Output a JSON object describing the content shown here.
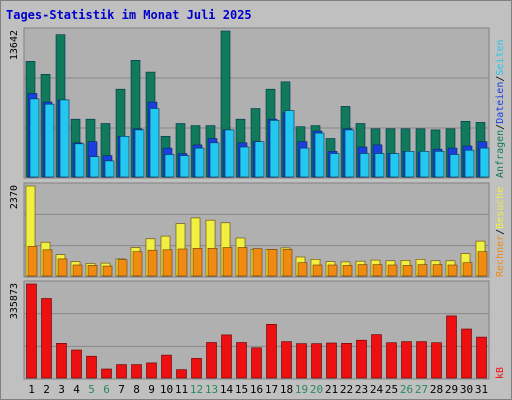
{
  "title": "Tages-Statistik im Monat Juli 2025",
  "colors": {
    "bg": "#c0c0c0",
    "plot": "#b0b0b0",
    "grid": "#888888",
    "anfragen": "#107a5a",
    "dateien": "#1a3ee0",
    "seiten": "#22c8f0",
    "besuche": "#f0f040",
    "rechner": "#f08a10",
    "kb": "#ee1010",
    "weekday": "#000000",
    "weekend": "#2a8a5a",
    "title": "#0000cc"
  },
  "chart_data": [
    {
      "type": "bar",
      "title": "Tages-Statistik im Monat Juli 2025",
      "ymax_label": "13642",
      "ylim": [
        0,
        13642
      ],
      "right_labels": [
        {
          "text": "Anfragen",
          "color": "#107a5a"
        },
        {
          "text": "/",
          "color": "#000000"
        },
        {
          "text": "Dateien",
          "color": "#1a3ee0"
        },
        {
          "text": "/",
          "color": "#000000"
        },
        {
          "text": "Seiten",
          "color": "#22c8f0"
        }
      ],
      "categories": [
        "1",
        "2",
        "3",
        "4",
        "5",
        "6",
        "7",
        "8",
        "9",
        "10",
        "11",
        "12",
        "13",
        "14",
        "15",
        "16",
        "17",
        "18",
        "19",
        "20",
        "21",
        "22",
        "23",
        "24",
        "25",
        "26",
        "27",
        "28",
        "29",
        "30",
        "31"
      ],
      "series": [
        {
          "name": "Anfragen",
          "values": [
            10800,
            9600,
            13300,
            5400,
            5400,
            5000,
            8200,
            10900,
            9800,
            3800,
            5000,
            4800,
            4800,
            13642,
            5400,
            6400,
            8200,
            8900,
            4700,
            4800,
            3600,
            6600,
            5000,
            4500,
            4500,
            4500,
            4500,
            4400,
            4500,
            5200,
            5100
          ]
        },
        {
          "name": "Dateien",
          "values": [
            7800,
            7000,
            7200,
            3200,
            3300,
            2000,
            3800,
            4500,
            7000,
            2700,
            2200,
            3000,
            3600,
            4400,
            3200,
            3300,
            5400,
            6000,
            3300,
            4300,
            2400,
            4500,
            2800,
            3000,
            2200,
            2400,
            2300,
            2600,
            2700,
            2900,
            3300
          ]
        },
        {
          "name": "Seiten",
          "values": [
            7300,
            6800,
            7200,
            3100,
            1900,
            1500,
            3800,
            4400,
            6400,
            2100,
            2000,
            2700,
            3200,
            4400,
            2800,
            3300,
            5300,
            6200,
            2700,
            4100,
            2200,
            4400,
            2200,
            2200,
            2200,
            2400,
            2400,
            2400,
            2100,
            2500,
            2700
          ]
        }
      ]
    },
    {
      "type": "bar",
      "ymax_label": "2370",
      "ylim": [
        0,
        2370
      ],
      "right_labels": [
        {
          "text": "Rechner",
          "color": "#f08a10"
        },
        {
          "text": "/",
          "color": "#000000"
        },
        {
          "text": "Besuche",
          "color": "#f0f040"
        }
      ],
      "categories": [
        "1",
        "2",
        "3",
        "4",
        "5",
        "6",
        "7",
        "8",
        "9",
        "10",
        "11",
        "12",
        "13",
        "14",
        "15",
        "16",
        "17",
        "18",
        "19",
        "20",
        "21",
        "22",
        "23",
        "24",
        "25",
        "26",
        "27",
        "28",
        "29",
        "30",
        "31"
      ],
      "series": [
        {
          "name": "Besuche",
          "values": [
            2370,
            890,
            560,
            380,
            330,
            340,
            450,
            750,
            980,
            1050,
            1380,
            1530,
            1470,
            1400,
            1000,
            700,
            700,
            740,
            500,
            440,
            380,
            370,
            390,
            420,
            400,
            410,
            440,
            400,
            400,
            590,
            920
          ]
        },
        {
          "name": "Rechner",
          "values": [
            780,
            690,
            450,
            290,
            280,
            260,
            430,
            640,
            680,
            690,
            710,
            730,
            730,
            750,
            750,
            720,
            700,
            700,
            350,
            290,
            290,
            280,
            300,
            300,
            290,
            280,
            300,
            300,
            290,
            350,
            640
          ]
        }
      ]
    },
    {
      "type": "bar",
      "ymax_label": "335873",
      "ylim": [
        0,
        335873
      ],
      "right_labels": [
        {
          "text": "kB",
          "color": "#ee1010"
        }
      ],
      "categories": [
        "1",
        "2",
        "3",
        "4",
        "5",
        "6",
        "7",
        "8",
        "9",
        "10",
        "11",
        "12",
        "13",
        "14",
        "15",
        "16",
        "17",
        "18",
        "19",
        "20",
        "21",
        "22",
        "23",
        "24",
        "25",
        "26",
        "27",
        "28",
        "29",
        "30",
        "31"
      ],
      "series": [
        {
          "name": "kB",
          "values": [
            335873,
            284000,
            124000,
            100000,
            78000,
            32000,
            48000,
            48000,
            54000,
            82000,
            30000,
            70000,
            127000,
            154000,
            127000,
            108000,
            192000,
            130000,
            123000,
            123000,
            125000,
            124000,
            135000,
            155000,
            126000,
            130000,
            130000,
            126000,
            222000,
            175000,
            146000
          ]
        }
      ]
    }
  ],
  "x_labels": [
    {
      "text": "1",
      "weekend": false
    },
    {
      "text": "2",
      "weekend": false
    },
    {
      "text": "3",
      "weekend": false
    },
    {
      "text": "4",
      "weekend": false
    },
    {
      "text": "5",
      "weekend": true
    },
    {
      "text": "6",
      "weekend": true
    },
    {
      "text": "7",
      "weekend": false
    },
    {
      "text": "8",
      "weekend": false
    },
    {
      "text": "9",
      "weekend": false
    },
    {
      "text": "10",
      "weekend": false
    },
    {
      "text": "11",
      "weekend": false
    },
    {
      "text": "12",
      "weekend": true
    },
    {
      "text": "13",
      "weekend": true
    },
    {
      "text": "14",
      "weekend": false
    },
    {
      "text": "15",
      "weekend": false
    },
    {
      "text": "16",
      "weekend": false
    },
    {
      "text": "17",
      "weekend": false
    },
    {
      "text": "18",
      "weekend": false
    },
    {
      "text": "19",
      "weekend": true
    },
    {
      "text": "20",
      "weekend": true
    },
    {
      "text": "21",
      "weekend": false
    },
    {
      "text": "22",
      "weekend": false
    },
    {
      "text": "23",
      "weekend": false
    },
    {
      "text": "24",
      "weekend": false
    },
    {
      "text": "25",
      "weekend": false
    },
    {
      "text": "26",
      "weekend": true
    },
    {
      "text": "27",
      "weekend": true
    },
    {
      "text": "28",
      "weekend": false
    },
    {
      "text": "29",
      "weekend": false
    },
    {
      "text": "30",
      "weekend": false
    },
    {
      "text": "31",
      "weekend": false
    }
  ]
}
